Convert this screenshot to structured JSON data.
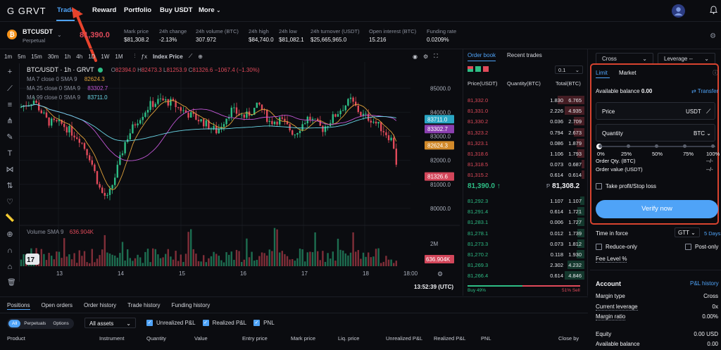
{
  "nav": {
    "logo": "G GRVT",
    "items": [
      "Trade",
      "Reward",
      "Portfolio",
      "Buy USDT",
      "More"
    ]
  },
  "ticker": {
    "symbol": "BTCUSDT",
    "type": "Perpetual",
    "last_price": "81,390.0",
    "stats": [
      {
        "label": "Mark price",
        "value": "$81,308.2",
        "color": "white"
      },
      {
        "label": "24h change",
        "value": "-2.13%",
        "color": "red"
      },
      {
        "label": "24h volume (BTC)",
        "value": "307.972",
        "color": "white"
      },
      {
        "label": "24h high",
        "value": "$84,740.0",
        "color": "white"
      },
      {
        "label": "24h low",
        "value": "$81,082.1",
        "color": "white"
      },
      {
        "label": "24h turnover (USDT)",
        "value": "$25,665,965.0",
        "color": "white"
      },
      {
        "label": "Open interest (BTC)",
        "value": "15.216",
        "color": "white"
      },
      {
        "label": "Funding rate",
        "value": "0.0209%",
        "color": "white"
      }
    ]
  },
  "chart_toolbar": {
    "intervals": [
      "1m",
      "5m",
      "15m",
      "30m",
      "1h",
      "4h",
      "1D",
      "1W",
      "1M"
    ],
    "index_price": "Index Price"
  },
  "chart": {
    "pair": "BTC/USDT · 1h · GRVT",
    "ohlc": {
      "o": "82394.0",
      "h": "82473.3",
      "l": "81253.9",
      "c": "81326.6",
      "chg": "−1067.4 (−1.30%)"
    },
    "ma": [
      {
        "label": "MA 7 close 0 SMA 9",
        "value": "82624.3",
        "color": "#e0a23a"
      },
      {
        "label": "MA 25 close 0 SMA 9",
        "value": "83302.7",
        "color": "#c257d6"
      },
      {
        "label": "MA 99 close 0 SMA 9",
        "value": "83711.0",
        "color": "#6ad8e8"
      }
    ],
    "price_ticks": [
      "85000.0",
      "84000.0",
      "83000.0",
      "82000.0",
      "81000.0",
      "80000.0"
    ],
    "price_tags": [
      {
        "value": "83711.0",
        "bg": "#2aa6c4",
        "fg": "#ffffff"
      },
      {
        "value": "83302.7",
        "bg": "#8b3fb0",
        "fg": "#ffffff"
      },
      {
        "value": "82624.3",
        "bg": "#d28a2a",
        "fg": "#ffffff"
      },
      {
        "value": "81326.6",
        "bg": "#d2465a",
        "fg": "#ffffff"
      }
    ],
    "volume_label": "Volume SMA 9",
    "volume_value": "636.904K",
    "volume_tag": "636.904K",
    "vol_tick": "2M",
    "x_labels": [
      "13",
      "14",
      "15",
      "16",
      "17",
      "18",
      "18:00"
    ],
    "clock": "13:52:39 (UTC)"
  },
  "orderbook": {
    "tabs": [
      "Order book",
      "Recent trades"
    ],
    "precision": "0.1",
    "headers": [
      "Price(USDT)",
      "Quantity(BTC)",
      "Total(BTC)"
    ],
    "asks": [
      [
        "81,332.0",
        "1.830",
        "6.765",
        0.95
      ],
      [
        "81,331.0",
        "2.226",
        "4.935",
        0.7
      ],
      [
        "81,330.2",
        "0.036",
        "2.709",
        0.38
      ],
      [
        "81,323.2",
        "0.794",
        "2.673",
        0.38
      ],
      [
        "81,323.1",
        "0.086",
        "1.879",
        0.27
      ],
      [
        "81,318.6",
        "1.106",
        "1.793",
        0.25
      ],
      [
        "81,318.5",
        "0.073",
        "0.687",
        0.1
      ],
      [
        "81,315.2",
        "0.614",
        "0.614",
        0.09
      ]
    ],
    "mid_price": "81,390.0",
    "mid_arrow": "↑",
    "mark": "81,308.2",
    "bids": [
      [
        "81,292.3",
        "1.107",
        "1.107",
        0.16
      ],
      [
        "81,291.4",
        "0.614",
        "1.721",
        0.25
      ],
      [
        "81,283.1",
        "0.006",
        "1.727",
        0.25
      ],
      [
        "81,278.1",
        "0.012",
        "1.739",
        0.25
      ],
      [
        "81,273.3",
        "0.073",
        "1.812",
        0.26
      ],
      [
        "81,270.2",
        "0.118",
        "1.930",
        0.28
      ],
      [
        "81,269.3",
        "2.302",
        "4.232",
        0.61
      ],
      [
        "81,266.4",
        "0.614",
        "4.846",
        0.7
      ]
    ],
    "buy_pct": "Buy 49%",
    "sell_pct": "51% Sell",
    "buy_ratio": 0.49
  },
  "order_form": {
    "margin_mode": "Cross",
    "leverage": "Leverage --",
    "tabs": [
      "Limit",
      "Market"
    ],
    "available_label": "Available balance",
    "available_value": "0.00",
    "transfer": "Transfer",
    "price_label": "Price",
    "price_unit": "USDT",
    "qty_label": "Quantity",
    "qty_unit": "BTC",
    "slider_marks": [
      "0%",
      "25%",
      "50%",
      "75%",
      "100%"
    ],
    "order_qty_label": "Order Qty. (BTC)",
    "order_qty_value": "--/-",
    "order_value_label": "Order value (USDT)",
    "order_value_value": "--/-",
    "tpsl": "Take profit/Stop loss",
    "verify": "Verify now",
    "tif_label": "Time in force",
    "tif_value": "GTT",
    "tif_days": "5 Days",
    "reduce_only": "Reduce-only",
    "post_only": "Post-only",
    "fee_level": "Fee Level %"
  },
  "account": {
    "title": "Account",
    "pnl_history": "P&L history",
    "rows": [
      {
        "label": "Margin type",
        "value": "Cross"
      },
      {
        "label": "Current leverage",
        "value": "0x"
      },
      {
        "label": "Margin ratio",
        "value": "0.00%"
      },
      {
        "label": "Equity",
        "value": "0.00  USD"
      },
      {
        "label": "Available balance",
        "value": "0.00"
      }
    ]
  },
  "positions": {
    "tabs": [
      "Positions",
      "Open orders",
      "Order history",
      "Trade history",
      "Funding history"
    ],
    "filters": [
      "All",
      "Perpetuals",
      "Options"
    ],
    "assets": "All assets",
    "checkboxes": [
      "Unrealized P&L",
      "Realized P&L",
      "PNL"
    ],
    "columns": [
      "Product",
      "Instrument",
      "Quantity",
      "Value",
      "Entry price",
      "Mark price",
      "Liq. price",
      "Unrealized P&L",
      "Realized P&L",
      "PNL",
      "Close by"
    ]
  },
  "colors": {
    "accent": "#4fa3f7",
    "up": "#2ebd85",
    "down": "#e04a5a",
    "highlight_box": "#d8432f"
  }
}
